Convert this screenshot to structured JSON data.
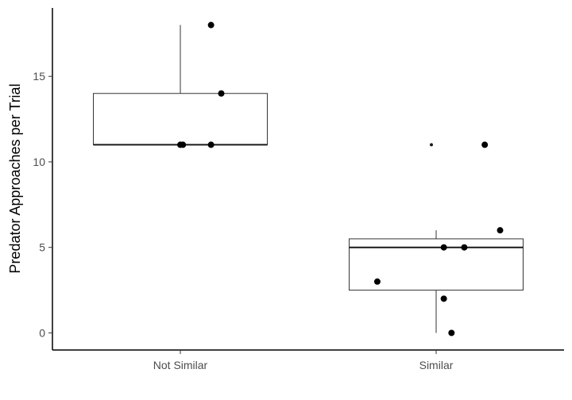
{
  "chart_data": {
    "type": "box",
    "title": "",
    "xlabel": "",
    "ylabel": "Predator Approaches per Trial",
    "ylim": [
      -1,
      19
    ],
    "y_ticks": [
      0,
      5,
      10,
      15
    ],
    "grid": false,
    "categories": [
      "Not Similar",
      "Similar"
    ],
    "boxes": [
      {
        "category": "Not Similar",
        "min": 11,
        "q1": 11,
        "median": 11,
        "q3": 14,
        "max": 18,
        "outliers": []
      },
      {
        "category": "Similar",
        "min": 0,
        "q1": 2.5,
        "median": 5,
        "q3": 5.5,
        "max": 6,
        "outliers": [
          11
        ]
      }
    ],
    "points": [
      {
        "category": "Not Similar",
        "jitter": 0.12,
        "y": 18
      },
      {
        "category": "Not Similar",
        "jitter": 0.16,
        "y": 14
      },
      {
        "category": "Not Similar",
        "jitter": 0.0,
        "y": 11
      },
      {
        "category": "Not Similar",
        "jitter": 0.01,
        "y": 11
      },
      {
        "category": "Not Similar",
        "jitter": 0.12,
        "y": 11
      },
      {
        "category": "Similar",
        "jitter": 0.19,
        "y": 11
      },
      {
        "category": "Similar",
        "jitter": 0.25,
        "y": 6
      },
      {
        "category": "Similar",
        "jitter": 0.03,
        "y": 5
      },
      {
        "category": "Similar",
        "jitter": 0.11,
        "y": 5
      },
      {
        "category": "Similar",
        "jitter": -0.23,
        "y": 3
      },
      {
        "category": "Similar",
        "jitter": 0.03,
        "y": 2
      },
      {
        "category": "Similar",
        "jitter": 0.06,
        "y": 0
      }
    ]
  }
}
